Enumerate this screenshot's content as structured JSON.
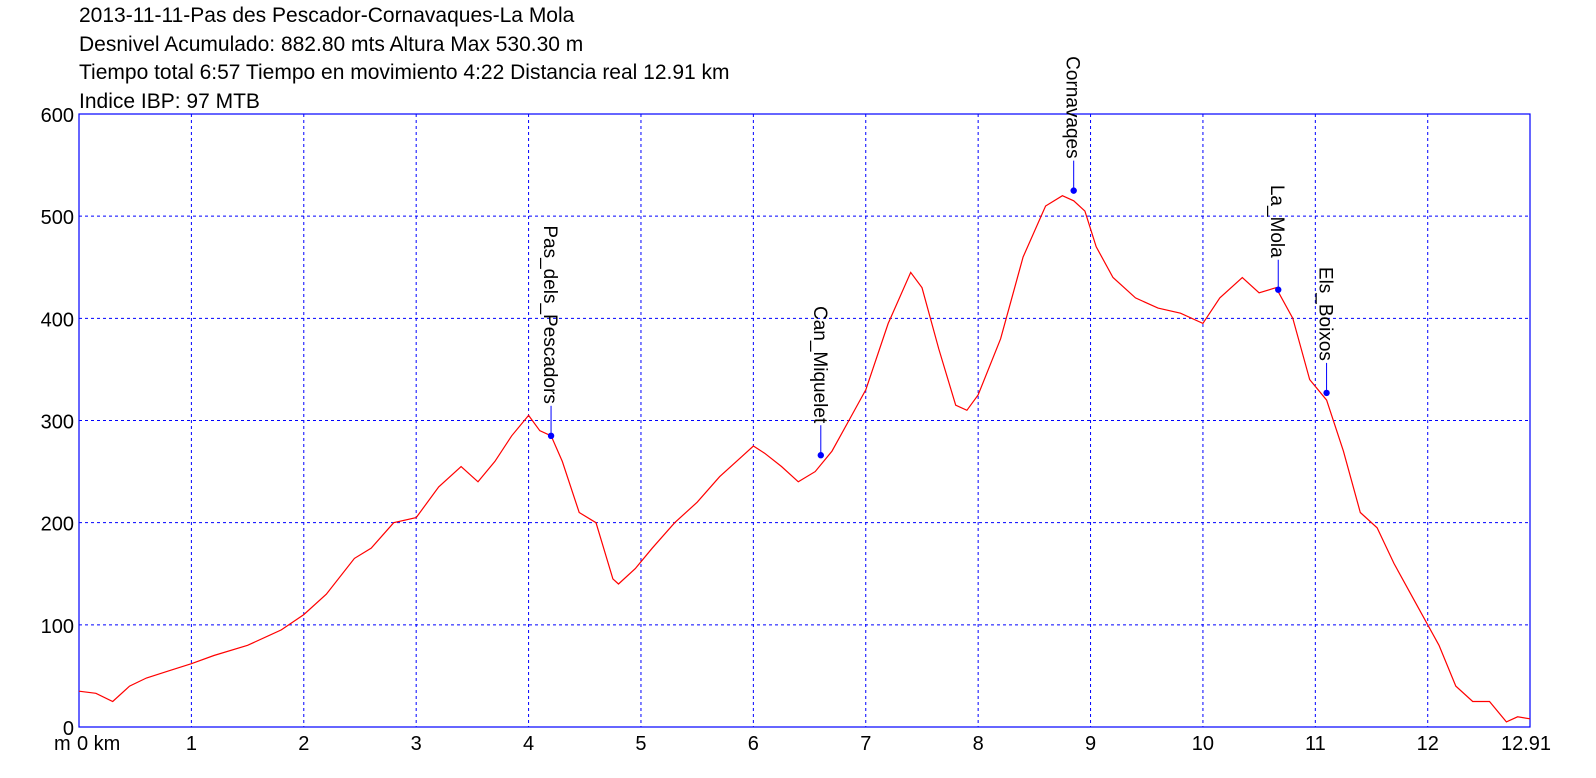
{
  "header": {
    "line1": "2013-11-11-Pas des Pescador-Cornavaques-La Mola",
    "line2": "Desnivel Acumulado: 882.80 mts  Altura Max 530.30 m",
    "line3": "Tiempo total 6:57 Tiempo en movimiento 4:22 Distancia real 12.91 km",
    "line4": "Indice IBP: 97 MTB"
  },
  "colors": {
    "profile": "#ff0000",
    "grid": "#0000ff",
    "frame": "#0000ff",
    "waypoint": "#0000ff"
  },
  "chart_data": {
    "type": "line",
    "title": "2013-11-11-Pas des Pescador-Cornavaques-La Mola",
    "xlabel": "km",
    "ylabel": "m",
    "xlim": [
      0,
      12.91
    ],
    "ylim": [
      0,
      600
    ],
    "grid": true,
    "x_ticks": [
      "0 km",
      "1",
      "2",
      "3",
      "4",
      "5",
      "6",
      "7",
      "8",
      "9",
      "10",
      "11",
      "12",
      "12.91"
    ],
    "y_ticks": [
      "0",
      "100",
      "200",
      "300",
      "400",
      "500",
      "600"
    ],
    "series": [
      {
        "x": [
          0,
          0.15,
          0.3,
          0.45,
          0.6,
          0.8,
          1.0,
          1.2,
          1.5,
          1.8,
          2.0,
          2.2,
          2.45,
          2.6,
          2.8,
          3.0,
          3.2,
          3.4,
          3.55,
          3.7,
          3.85,
          4.0,
          4.1,
          4.2,
          4.3,
          4.45,
          4.6,
          4.75,
          4.8,
          4.95,
          5.1,
          5.3,
          5.5,
          5.7,
          5.9,
          6.0,
          6.1,
          6.25,
          6.4,
          6.55,
          6.7,
          6.85,
          7.0,
          7.2,
          7.4,
          7.5,
          7.65,
          7.8,
          7.9,
          8.0,
          8.2,
          8.4,
          8.6,
          8.75,
          8.85,
          8.95,
          9.05,
          9.2,
          9.4,
          9.6,
          9.8,
          10.0,
          10.15,
          10.35,
          10.5,
          10.65,
          10.8,
          10.95,
          11.1,
          11.25,
          11.4,
          11.55,
          11.7,
          11.9,
          12.1,
          12.25,
          12.4,
          12.55,
          12.7,
          12.8,
          12.91
        ],
        "values": [
          35,
          33,
          25,
          40,
          48,
          55,
          62,
          70,
          80,
          95,
          110,
          130,
          165,
          175,
          200,
          205,
          235,
          255,
          240,
          260,
          285,
          305,
          290,
          285,
          260,
          210,
          200,
          145,
          140,
          155,
          175,
          200,
          220,
          245,
          265,
          275,
          268,
          255,
          240,
          250,
          270,
          300,
          330,
          395,
          445,
          430,
          370,
          315,
          310,
          325,
          380,
          460,
          510,
          520,
          515,
          505,
          470,
          440,
          420,
          410,
          405,
          395,
          420,
          440,
          425,
          430,
          400,
          340,
          320,
          270,
          210,
          195,
          160,
          120,
          80,
          40,
          25,
          25,
          5,
          10,
          8
        ]
      }
    ],
    "waypoints": [
      {
        "name": "Pas_dels_Pescadors",
        "x": 4.2,
        "y": 285
      },
      {
        "name": "Can_Miquelet",
        "x": 6.6,
        "y": 266
      },
      {
        "name": "Cornavaqes",
        "x": 8.85,
        "y": 525
      },
      {
        "name": "La_Mola",
        "x": 10.67,
        "y": 428
      },
      {
        "name": "Els_Boixos",
        "x": 11.1,
        "y": 327
      }
    ]
  }
}
